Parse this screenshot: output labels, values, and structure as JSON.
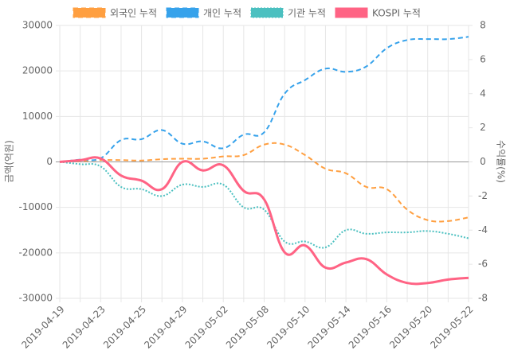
{
  "chart_data": {
    "type": "line",
    "categories": [
      "2019-04-19",
      null,
      "2019-04-23",
      null,
      "2019-04-25",
      null,
      "2019-04-29",
      null,
      "2019-05-02",
      null,
      "2019-05-08",
      null,
      "2019-05-10",
      null,
      "2019-05-14",
      null,
      "2019-05-16",
      null,
      "2019-05-20",
      null,
      "2019-05-22"
    ],
    "y_label": "금액(억원)",
    "y2_label": "수익률(%)",
    "ylim": [
      -30000,
      30000
    ],
    "yticks": [
      -30000,
      -20000,
      -10000,
      0,
      10000,
      20000,
      30000
    ],
    "y2lim": [
      -8,
      8
    ],
    "y2ticks": [
      -8,
      -6,
      -4,
      -2,
      0,
      2,
      4,
      6,
      8
    ],
    "grid": true,
    "legend": "top",
    "series": [
      {
        "name": "외국인 누적",
        "color": "#ff9f40",
        "style": "dashed",
        "values": [
          0,
          200,
          400,
          400,
          300,
          600,
          700,
          700,
          1200,
          1500,
          3800,
          3800,
          1500,
          -1500,
          -2500,
          -5500,
          -6000,
          -10500,
          -12800,
          -13000,
          -12200
        ]
      },
      {
        "name": "개인 누적",
        "color": "#36a2eb",
        "style": "dashed",
        "values": [
          0,
          500,
          800,
          4800,
          5000,
          7000,
          4000,
          4500,
          3000,
          6000,
          6500,
          15000,
          18000,
          20500,
          19800,
          21000,
          25000,
          26800,
          27000,
          27000,
          27500
        ]
      },
      {
        "name": "기관 누적",
        "color": "#4bc0c0",
        "style": "dotted",
        "values": [
          0,
          -500,
          -1000,
          -5500,
          -6000,
          -7500,
          -5000,
          -5500,
          -5000,
          -10000,
          -10500,
          -17500,
          -17500,
          -18800,
          -15000,
          -15800,
          -15500,
          -15500,
          -15200,
          -15800,
          -16800
        ]
      },
      {
        "name": "KOSPI 누적",
        "color": "#ff6384",
        "style": "solid",
        "axis": "y2",
        "values": [
          0.0,
          0.1,
          0.2,
          -0.8,
          -1.1,
          -1.6,
          0.0,
          -0.5,
          -0.2,
          -1.7,
          -2.2,
          -5.3,
          -4.9,
          -6.2,
          -5.9,
          -5.7,
          -6.6,
          -7.1,
          -7.1,
          -6.9,
          -6.8
        ]
      }
    ]
  }
}
